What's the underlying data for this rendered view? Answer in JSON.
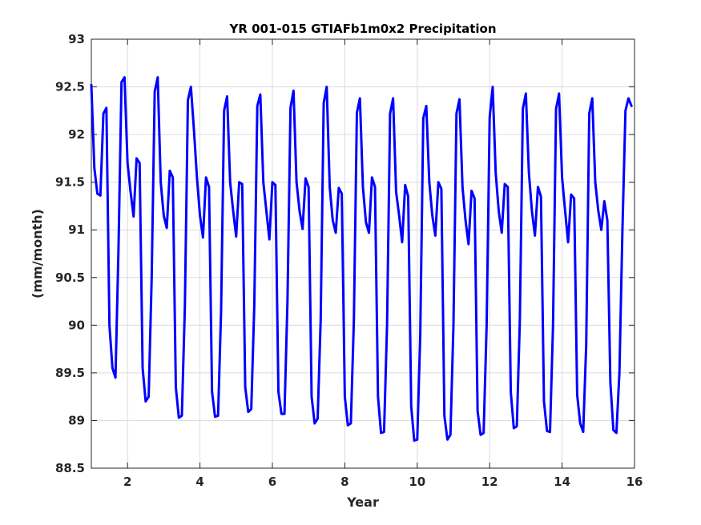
{
  "chart_data": {
    "type": "line",
    "title": "YR 001-015 GTIAFb1m0x2 Precipitation",
    "xlabel": "Year",
    "ylabel": "(mm/month)",
    "xlim": [
      1,
      16
    ],
    "ylim": [
      88.5,
      93
    ],
    "xticks": [
      2,
      4,
      6,
      8,
      10,
      12,
      14,
      16
    ],
    "yticks": [
      88.5,
      89,
      89.5,
      90,
      90.5,
      91,
      91.5,
      92,
      92.5,
      93
    ],
    "xtick_labels": [
      "2",
      "4",
      "6",
      "8",
      "10",
      "12",
      "14",
      "16"
    ],
    "ytick_labels": [
      "88.5",
      "89",
      "89.5",
      "90",
      "90.5",
      "91",
      "91.5",
      "92",
      "92.5",
      "93"
    ],
    "grid": true,
    "series": [
      {
        "color": "#0000ff",
        "annual_cycle": {
          "x_offsets": [
            0,
            0.0833,
            0.1667,
            0.25,
            0.3333,
            0.4167,
            0.5,
            0.5833,
            0.6667,
            0.75,
            0.8333,
            0.9167
          ],
          "years": [
            1,
            2,
            3,
            4,
            5,
            6,
            7,
            8,
            9,
            10,
            11,
            12,
            13,
            14,
            15
          ],
          "values": [
            [
              92.52,
              91.65,
              91.38,
              91.36,
              92.22,
              92.28,
              90.0,
              89.55,
              89.45,
              90.8,
              92.55,
              92.6
            ],
            [
              91.7,
              91.4,
              91.14,
              91.75,
              91.7,
              89.55,
              89.2,
              89.25,
              90.5,
              92.45,
              92.6,
              91.5
            ],
            [
              91.15,
              91.02,
              91.62,
              91.55,
              89.35,
              89.03,
              89.05,
              90.2,
              92.36,
              92.5,
              92.05,
              91.55
            ],
            [
              91.15,
              90.92,
              91.55,
              91.45,
              89.3,
              89.04,
              89.05,
              90.15,
              92.25,
              92.4,
              91.5,
              91.2
            ],
            [
              90.93,
              91.5,
              91.48,
              89.35,
              89.09,
              89.12,
              90.2,
              92.3,
              92.42,
              91.5,
              91.2,
              90.9
            ],
            [
              91.5,
              91.47,
              89.3,
              89.07,
              89.07,
              90.25,
              92.28,
              92.46,
              91.5,
              91.2,
              91.01,
              91.54
            ],
            [
              91.45,
              89.25,
              88.97,
              89.02,
              90.05,
              92.33,
              92.5,
              91.45,
              91.1,
              90.97,
              91.44,
              91.38
            ],
            [
              89.25,
              88.95,
              88.97,
              90.05,
              92.23,
              92.38,
              91.45,
              91.08,
              90.97,
              91.55,
              91.45,
              89.25
            ],
            [
              88.87,
              88.88,
              90.0,
              92.22,
              92.38,
              91.4,
              91.15,
              90.87,
              91.47,
              91.35,
              89.15,
              88.79
            ],
            [
              88.8,
              89.9,
              92.17,
              92.3,
              91.5,
              91.15,
              90.94,
              91.5,
              91.43,
              89.05,
              88.8,
              88.85
            ],
            [
              90.0,
              92.22,
              92.37,
              91.45,
              91.1,
              90.85,
              91.41,
              91.33,
              89.1,
              88.85,
              88.87,
              90.0
            ],
            [
              92.18,
              92.5,
              91.6,
              91.2,
              90.97,
              91.48,
              91.45,
              89.3,
              88.92,
              88.94,
              90.05,
              92.27
            ],
            [
              92.43,
              91.6,
              91.2,
              90.94,
              91.45,
              91.35,
              89.2,
              88.89,
              88.88,
              90.0,
              92.27,
              92.43
            ],
            [
              91.55,
              91.2,
              90.87,
              91.37,
              91.33,
              89.27,
              88.97,
              88.88,
              89.8,
              92.22,
              92.38,
              91.5
            ],
            [
              91.2,
              91.0,
              91.3,
              91.1,
              89.4,
              88.9,
              88.87,
              89.5,
              91.0,
              92.25,
              92.38,
              92.3
            ]
          ]
        }
      }
    ]
  }
}
